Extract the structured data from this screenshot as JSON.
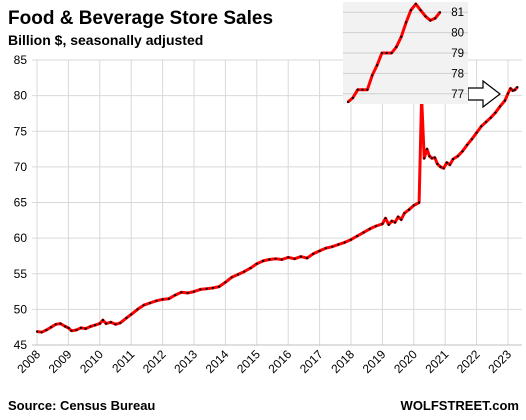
{
  "chart_data": {
    "type": "line",
    "title": "Food & Beverage Store Sales",
    "subtitle": "Billion $, seasonally adjusted",
    "source": "Source: Census Bureau",
    "brand": "WOLFSTREET.com",
    "ylim": [
      45,
      85
    ],
    "yticks": [
      45,
      50,
      55,
      60,
      65,
      70,
      75,
      80,
      85
    ],
    "xlim": [
      2008,
      2023.4
    ],
    "xticks": [
      "2008",
      "2009",
      "2010",
      "2011",
      "2012",
      "2013",
      "2014",
      "2015",
      "2016",
      "2017",
      "2018",
      "2019",
      "2020",
      "2021",
      "2022",
      "2023"
    ],
    "grid": true,
    "series": [
      {
        "color": "#ff0000",
        "points": [
          [
            2008.0,
            46.9
          ],
          [
            2008.15,
            46.8
          ],
          [
            2008.3,
            47.1
          ],
          [
            2008.45,
            47.5
          ],
          [
            2008.6,
            47.9
          ],
          [
            2008.75,
            48.0
          ],
          [
            2008.9,
            47.6
          ],
          [
            2009.0,
            47.4
          ],
          [
            2009.1,
            47.0
          ],
          [
            2009.25,
            47.1
          ],
          [
            2009.4,
            47.4
          ],
          [
            2009.55,
            47.3
          ],
          [
            2009.7,
            47.6
          ],
          [
            2009.85,
            47.8
          ],
          [
            2010.0,
            48.0
          ],
          [
            2010.1,
            48.5
          ],
          [
            2010.2,
            48.0
          ],
          [
            2010.35,
            48.2
          ],
          [
            2010.5,
            47.9
          ],
          [
            2010.65,
            48.1
          ],
          [
            2010.85,
            48.8
          ],
          [
            2011.0,
            49.3
          ],
          [
            2011.2,
            50.0
          ],
          [
            2011.4,
            50.6
          ],
          [
            2011.6,
            50.9
          ],
          [
            2011.8,
            51.2
          ],
          [
            2012.0,
            51.4
          ],
          [
            2012.2,
            51.5
          ],
          [
            2012.4,
            52.0
          ],
          [
            2012.6,
            52.4
          ],
          [
            2012.8,
            52.3
          ],
          [
            2013.0,
            52.5
          ],
          [
            2013.2,
            52.8
          ],
          [
            2013.4,
            52.9
          ],
          [
            2013.6,
            53.0
          ],
          [
            2013.8,
            53.2
          ],
          [
            2014.0,
            53.8
          ],
          [
            2014.2,
            54.5
          ],
          [
            2014.4,
            54.9
          ],
          [
            2014.6,
            55.3
          ],
          [
            2014.8,
            55.8
          ],
          [
            2015.0,
            56.4
          ],
          [
            2015.2,
            56.8
          ],
          [
            2015.4,
            57.0
          ],
          [
            2015.6,
            57.1
          ],
          [
            2015.8,
            57.0
          ],
          [
            2016.0,
            57.3
          ],
          [
            2016.2,
            57.1
          ],
          [
            2016.4,
            57.4
          ],
          [
            2016.6,
            57.2
          ],
          [
            2016.8,
            57.8
          ],
          [
            2017.0,
            58.2
          ],
          [
            2017.2,
            58.6
          ],
          [
            2017.4,
            58.8
          ],
          [
            2017.6,
            59.1
          ],
          [
            2017.8,
            59.4
          ],
          [
            2018.0,
            59.8
          ],
          [
            2018.2,
            60.3
          ],
          [
            2018.4,
            60.8
          ],
          [
            2018.6,
            61.3
          ],
          [
            2018.8,
            61.7
          ],
          [
            2019.0,
            62.0
          ],
          [
            2019.1,
            62.8
          ],
          [
            2019.2,
            61.9
          ],
          [
            2019.3,
            62.4
          ],
          [
            2019.4,
            62.2
          ],
          [
            2019.5,
            63.0
          ],
          [
            2019.6,
            62.6
          ],
          [
            2019.7,
            63.5
          ],
          [
            2019.85,
            64.0
          ],
          [
            2020.0,
            64.6
          ],
          [
            2020.17,
            65.0
          ],
          [
            2020.25,
            79.8
          ],
          [
            2020.33,
            71.2
          ],
          [
            2020.42,
            72.5
          ],
          [
            2020.5,
            71.5
          ],
          [
            2020.58,
            71.2
          ],
          [
            2020.67,
            71.3
          ],
          [
            2020.75,
            70.4
          ],
          [
            2020.85,
            70.0
          ],
          [
            2020.95,
            69.8
          ],
          [
            2021.05,
            70.6
          ],
          [
            2021.15,
            70.3
          ],
          [
            2021.25,
            71.1
          ],
          [
            2021.4,
            71.5
          ],
          [
            2021.55,
            72.2
          ],
          [
            2021.7,
            73.1
          ],
          [
            2021.85,
            73.9
          ],
          [
            2022.0,
            74.8
          ],
          [
            2022.15,
            75.7
          ],
          [
            2022.3,
            76.3
          ],
          [
            2022.45,
            76.9
          ],
          [
            2022.6,
            77.6
          ],
          [
            2022.75,
            78.5
          ],
          [
            2022.9,
            79.3
          ],
          [
            2023.0,
            80.3
          ],
          [
            2023.08,
            81.0
          ],
          [
            2023.15,
            80.7
          ],
          [
            2023.22,
            80.8
          ],
          [
            2023.3,
            81.2
          ]
        ]
      }
    ],
    "annotation": "arrow pointing to recent data",
    "inset": {
      "type": "line",
      "ylim": [
        76.5,
        81.5
      ],
      "yticks": [
        77,
        78,
        79,
        80,
        81
      ],
      "grid": true,
      "color": "#ff0000",
      "values": [
        76.6,
        76.8,
        77.2,
        77.2,
        77.2,
        77.9,
        78.4,
        79.0,
        79.0,
        79.0,
        79.3,
        79.8,
        80.5,
        81.1,
        81.4,
        81.1,
        80.8,
        80.6,
        80.7,
        81.0
      ]
    }
  }
}
